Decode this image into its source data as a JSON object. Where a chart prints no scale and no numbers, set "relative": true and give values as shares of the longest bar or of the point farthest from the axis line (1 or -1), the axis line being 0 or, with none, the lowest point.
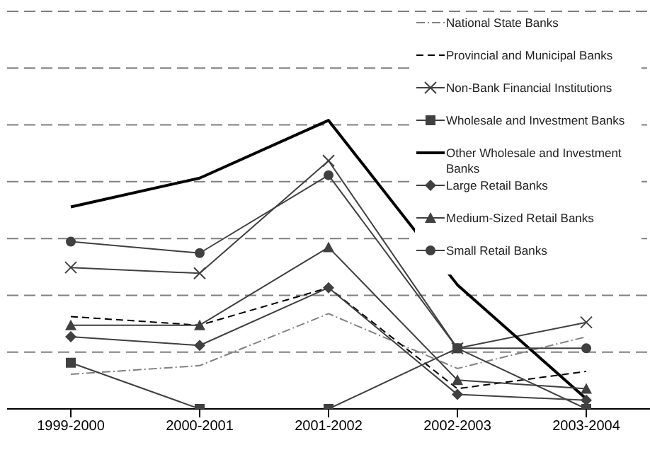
{
  "chart_data": {
    "type": "line",
    "relative": true,
    "grid": "y",
    "legend": "top right",
    "categories": [
      "1999-2000",
      "2000-2001",
      "2001-2002",
      "2002-2003",
      "2003-2004"
    ],
    "series": [
      {
        "name": "National State Banks",
        "color": "#808080",
        "line_style": "dashdot",
        "marker": "none",
        "values": [
          0.12,
          0.15,
          0.33,
          0.14,
          0.25
        ]
      },
      {
        "name": "Provincial and Municipal Banks",
        "color": "#000000",
        "line_style": "dashed",
        "marker": "none",
        "values": [
          0.32,
          0.29,
          0.42,
          0.07,
          0.13
        ]
      },
      {
        "name": "Non-Bank Financial Institutions",
        "color": "#404040",
        "line_style": "solid",
        "marker": "cross",
        "values": [
          0.49,
          0.47,
          0.86,
          0.21,
          0.3
        ]
      },
      {
        "name": "Wholesale and Investment Banks",
        "color": "#404040",
        "line_style": "solid",
        "marker": "square",
        "values": [
          0.16,
          0,
          0,
          0.21,
          0
        ]
      },
      {
        "name": "Other Wholesale and Investment Banks",
        "color": "#000000",
        "line_style": "solid",
        "marker": "none",
        "values": [
          0.7,
          0.8,
          1,
          0.43,
          0.035
        ]
      },
      {
        "name": "Large Retail Banks",
        "color": "#404040",
        "line_style": "solid",
        "marker": "diamond",
        "values": [
          0.25,
          0.22,
          0.42,
          0.05,
          0.03
        ]
      },
      {
        "name": "Medium-Sized Retail Banks",
        "color": "#404040",
        "line_style": "solid",
        "marker": "triangle",
        "values": [
          0.29,
          0.29,
          0.56,
          0.1,
          0.07
        ]
      },
      {
        "name": "Small Retail Banks",
        "color": "#404040",
        "line_style": "solid",
        "marker": "circle",
        "values": [
          0.58,
          0.54,
          0.81,
          0.21,
          0.21
        ]
      }
    ]
  }
}
